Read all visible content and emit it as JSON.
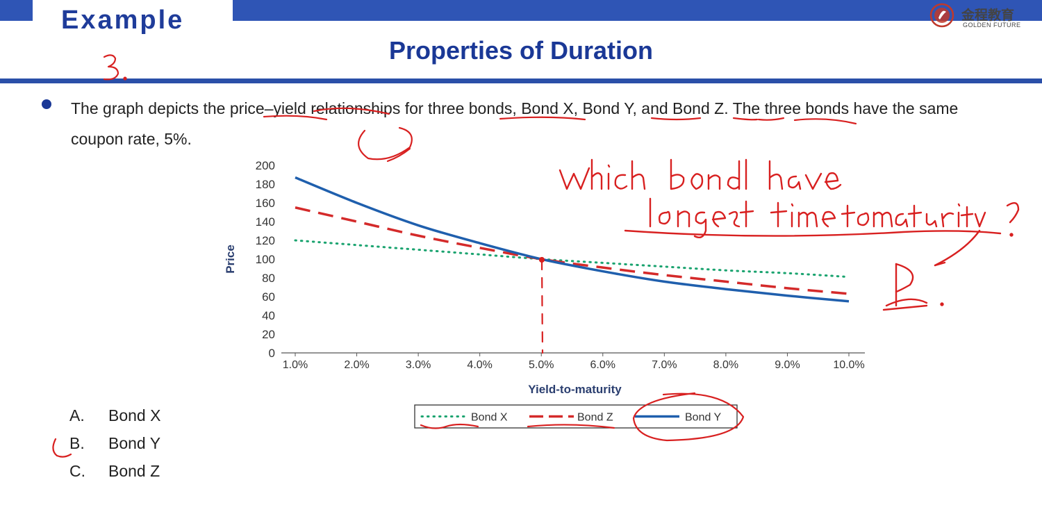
{
  "header": {
    "example_label": "Example",
    "title": "Properties of Duration",
    "logo": {
      "cn": "金程教育",
      "en": "GOLDEN FUTURE",
      "icon": "golden-future-logo-icon"
    }
  },
  "question": {
    "text": "The graph depicts the price–yield relationships for three bonds, Bond X, Bond Y, and Bond Z. The three bonds have the same coupon rate, 5%."
  },
  "options": [
    {
      "letter": "A.",
      "label": "Bond X"
    },
    {
      "letter": "B.",
      "label": "Bond Y"
    },
    {
      "letter": "C.",
      "label": "Bond Z"
    }
  ],
  "colors": {
    "bond_x": "#1aa36f",
    "bond_y": "#1f5fad",
    "bond_z": "#d42a2a",
    "ink": "#d82020",
    "header": "#2f55b5"
  },
  "chart_data": {
    "type": "line",
    "title": "",
    "xlabel": "Yield-to-maturity",
    "ylabel": "Price",
    "x": [
      0.01,
      0.02,
      0.03,
      0.04,
      0.05,
      0.06,
      0.07,
      0.08,
      0.09,
      0.1
    ],
    "x_tick_labels": [
      "1.0%",
      "2.0%",
      "3.0%",
      "4.0%",
      "5.0%",
      "6.0%",
      "7.0%",
      "8.0%",
      "9.0%",
      "10.0%"
    ],
    "y_ticks": [
      0,
      20,
      40,
      60,
      80,
      100,
      120,
      140,
      160,
      180,
      200
    ],
    "xlim": [
      0.01,
      0.1
    ],
    "ylim": [
      0,
      200
    ],
    "grid": false,
    "legend_position": "bottom",
    "series": [
      {
        "name": "Bond X",
        "style": "dotted",
        "values": [
          120,
          115,
          110,
          105,
          100,
          96,
          92,
          88,
          85,
          81
        ]
      },
      {
        "name": "Bond Z",
        "style": "dashed",
        "values": [
          155,
          140,
          125,
          112,
          100,
          91,
          83,
          76,
          69,
          63
        ]
      },
      {
        "name": "Bond Y",
        "style": "solid",
        "values": [
          187,
          160,
          136,
          117,
          100,
          87,
          76,
          68,
          61,
          55
        ]
      }
    ]
  },
  "annotations": {
    "handwritten": [
      "3.",
      "which bond have",
      "longest time to maturity ?",
      "B."
    ]
  }
}
